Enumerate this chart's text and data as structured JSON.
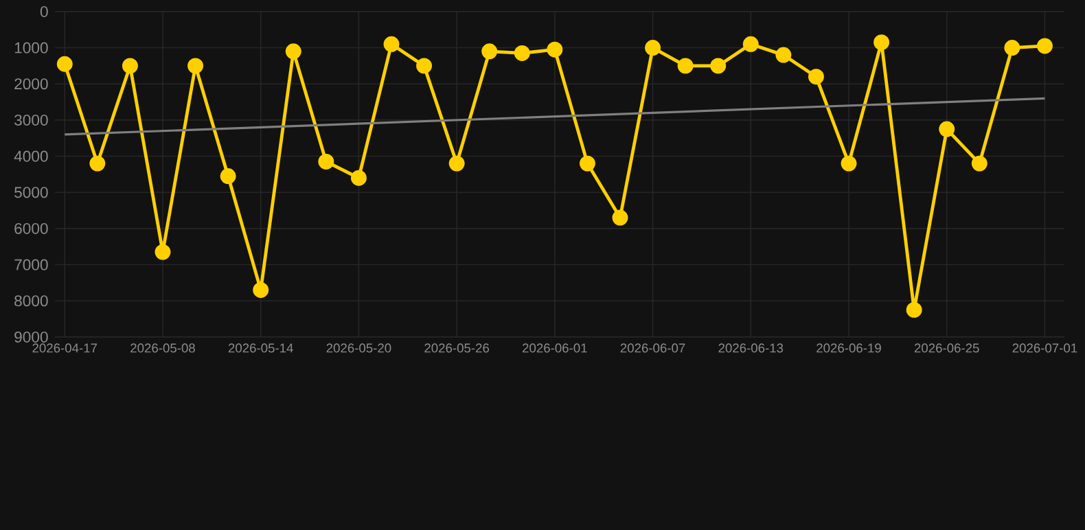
{
  "chart_data": {
    "type": "line",
    "categories": [
      "2026-04-17",
      null,
      null,
      "2026-05-08",
      null,
      null,
      "2026-05-14",
      null,
      null,
      "2026-05-20",
      null,
      null,
      "2026-05-26",
      null,
      null,
      "2026-06-01",
      null,
      null,
      "2026-06-07",
      null,
      null,
      "2026-06-13",
      null,
      null,
      "2026-06-19",
      null,
      null,
      "2026-06-25",
      null,
      null,
      "2026-07-01"
    ],
    "series": [
      {
        "color": "#ffd000",
        "marker": "circle",
        "values": [
          1450,
          4200,
          1500,
          6650,
          1500,
          4550,
          7700,
          1100,
          4150,
          4600,
          900,
          1500,
          4200,
          1100,
          1150,
          1050,
          4200,
          5700,
          1000,
          1500,
          1500,
          900,
          1200,
          1800,
          4200,
          850,
          8250,
          3250,
          4200,
          1000,
          950
        ]
      },
      {
        "type": "line",
        "color": "#808080",
        "marker": "none",
        "values": [
          3400,
          null,
          null,
          null,
          null,
          null,
          null,
          null,
          null,
          null,
          null,
          null,
          null,
          null,
          null,
          null,
          null,
          null,
          null,
          null,
          null,
          null,
          null,
          null,
          null,
          null,
          null,
          null,
          null,
          null,
          2400
        ]
      }
    ],
    "ylim": [
      9000,
      0
    ],
    "yticks": [
      0,
      1000,
      2000,
      3000,
      4000,
      5000,
      6000,
      7000,
      8000,
      9000
    ],
    "grid": true,
    "legend": false
  }
}
